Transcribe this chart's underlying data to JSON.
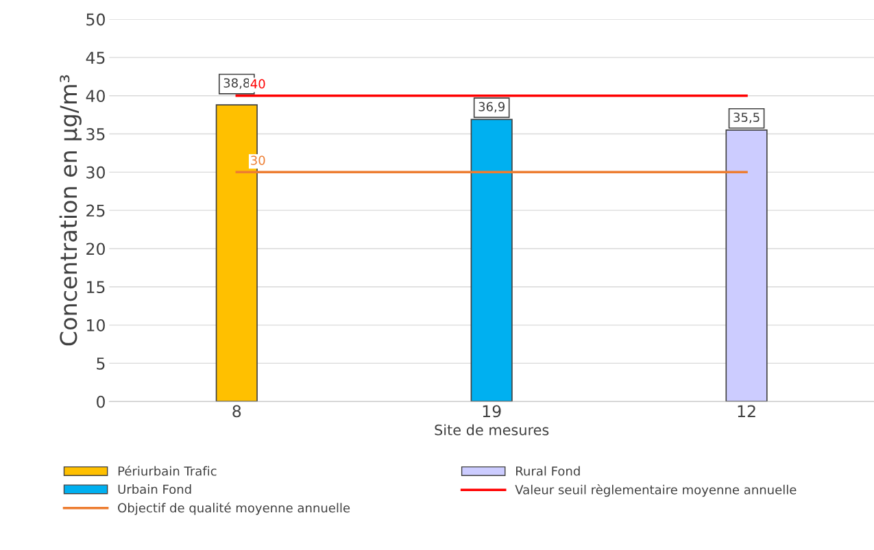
{
  "chart_data": {
    "type": "bar",
    "xlabel": "Site de mesures",
    "ylabel": "Concentration en µg/m³",
    "categories": [
      "8",
      "19",
      "12"
    ],
    "series": [
      {
        "name": "Périurbain Trafic",
        "color": "#ffc000",
        "values": [
          38.8,
          null,
          null
        ],
        "value_labels": [
          "38,8",
          null,
          null
        ]
      },
      {
        "name": "Urbain Fond",
        "color": "#00b0f0",
        "values": [
          null,
          36.9,
          null
        ],
        "value_labels": [
          null,
          "36,9",
          null
        ]
      },
      {
        "name": "Objectif de qualité moyenne annuelle",
        "type": "line",
        "color": "#ed7d31",
        "values": [
          30,
          30,
          30
        ],
        "value_labels": [
          "30",
          null,
          null
        ]
      },
      {
        "name": "Rural Fond",
        "color": "#ccccff",
        "values": [
          null,
          null,
          35.5
        ],
        "value_labels": [
          null,
          null,
          "35,5"
        ]
      },
      {
        "name": "Valeur seuil règlementaire moyenne annuelle",
        "type": "line",
        "color": "#ff0000",
        "values": [
          40,
          40,
          40
        ],
        "value_labels": [
          "40",
          null,
          null
        ]
      }
    ],
    "ylim": [
      0,
      50
    ],
    "yticks": [
      0,
      5,
      10,
      15,
      20,
      25,
      30,
      35,
      40,
      45,
      50
    ],
    "grid": "y",
    "legend": "bottom"
  }
}
